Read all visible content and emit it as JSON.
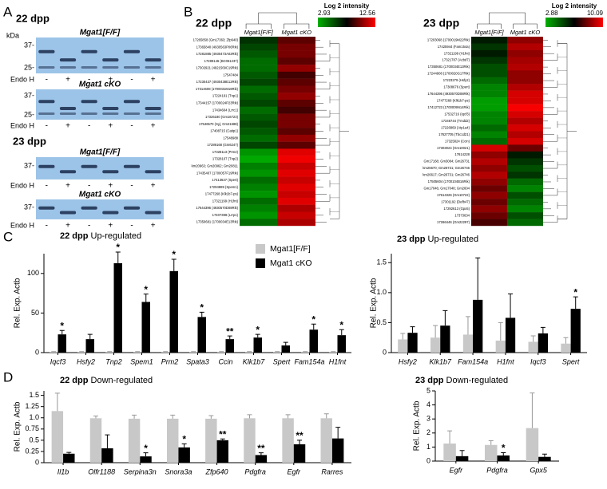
{
  "panels": {
    "a": "A",
    "b": "B",
    "c": "C",
    "d": "D"
  },
  "blots": {
    "unit": "kDa",
    "sections": [
      {
        "label": "22 dpp",
        "gels": [
          {
            "title": "Mgat1[F/F]",
            "markers": [
              "37-",
              "25-"
            ],
            "treatment": "Endo H",
            "signs": [
              "-",
              "+",
              "-",
              "+",
              "-",
              "+"
            ]
          },
          {
            "title": "Mgat1 cKO",
            "markers": [
              "37-",
              "25-"
            ],
            "treatment": "Endo H",
            "signs": [
              "-",
              "+",
              "-",
              "+",
              "-",
              "+"
            ]
          }
        ]
      },
      {
        "label": "23 dpp",
        "gels": [
          {
            "title": "Mgat1[F/F]",
            "markers": [
              "37-"
            ],
            "treatment": "Endo H",
            "signs": [
              "-",
              "+",
              "-",
              "+",
              "-",
              "+"
            ]
          },
          {
            "title": "Mgat1 cKO",
            "markers": [
              "37-"
            ],
            "treatment": "Endo H",
            "signs": [
              "-",
              "+",
              "-",
              "+",
              "-",
              "+"
            ]
          }
        ]
      }
    ]
  },
  "heatmaps": [
    {
      "title": "22 dpp",
      "scale_title": "Log 2 intensity",
      "scale_min": 2.93,
      "scale_max": 12.56,
      "groups": [
        "Mgat1[F/F]",
        "Mgat1 cKO"
      ],
      "rows": [
        {
          "label": "17265858 (Gm17363; Zfp640)",
          "values": [
            6.5,
            9.5
          ]
        },
        {
          "label": "17365840 (4930563P06Rik)",
          "values": [
            6,
            10
          ]
        },
        {
          "label": "17281885 (4930473A02Rik)",
          "values": [
            5.5,
            10
          ]
        },
        {
          "label": "17289146 (BC061237)",
          "values": [
            5,
            9.5
          ]
        },
        {
          "label": "17302921 (4921509C19Rik)",
          "values": [
            5,
            10.5
          ]
        },
        {
          "label": "17547484",
          "values": [
            5.5,
            9
          ]
        },
        {
          "label": "17230437 (4930438E12Rik)",
          "values": [
            6,
            9.5
          ]
        },
        {
          "label": "17314608 (1700031M16Rik)",
          "values": [
            5,
            10
          ]
        },
        {
          "label": "17224191 (Tnp1)",
          "values": [
            5.5,
            10.5
          ]
        },
        {
          "label": "17344157 (1700024P23Rik)",
          "values": [
            6,
            9.5
          ]
        },
        {
          "label": "17434604 (Lrrc1)",
          "values": [
            5,
            9
          ]
        },
        {
          "label": "17326180 (Gm16723)",
          "values": [
            5.5,
            10
          ]
        },
        {
          "label": "17546570 (Syj; Gm21688)",
          "values": [
            6,
            10
          ]
        },
        {
          "label": "17408715 (Catip1)",
          "values": [
            5.5,
            9.5
          ]
        },
        {
          "label": "17548988",
          "values": [
            5,
            10.5
          ]
        },
        {
          "label": "17289168 (Gm6247)",
          "values": [
            6,
            9.5
          ]
        },
        {
          "label": "17328113 (Prm2)",
          "values": [
            4,
            12
          ]
        },
        {
          "label": "17328107 (Tnp2)",
          "values": [
            3.5,
            12.3
          ]
        },
        {
          "label": "km20963; Gm20962; Gm20811",
          "values": [
            4.5,
            11.5
          ]
        },
        {
          "label": "17435407 (1700057F19Rik)",
          "values": [
            4,
            12
          ]
        },
        {
          "label": "17413637 (Spert)",
          "values": [
            5,
            11.5
          ]
        },
        {
          "label": "17294989 (Spem1)",
          "values": [
            4.5,
            12
          ]
        },
        {
          "label": "17477268 (Klk1b7-ps)",
          "values": [
            4,
            11.5
          ]
        },
        {
          "label": "17321199 (H1fnt)",
          "values": [
            5,
            12
          ]
        },
        {
          "label": "17644396 (4930570D08Rik)",
          "values": [
            4.5,
            11
          ]
        },
        {
          "label": "17407398 (Lrrp1)",
          "values": [
            4,
            11.5
          ]
        },
        {
          "label": "17350681 (1700034E13Rik)",
          "values": [
            5,
            11
          ]
        }
      ]
    },
    {
      "title": "23 dpp",
      "scale_title": "Log 2 intensity",
      "scale_min": 2.88,
      "scale_max": 10.09,
      "groups": [
        "Mgat1[F/F]",
        "Mgat1 cKO"
      ],
      "rows": [
        {
          "label": "17203068 (1700019M22Rik)",
          "values": [
            6,
            8.5
          ]
        },
        {
          "label": "17425944 (Fam154a)",
          "values": [
            5.5,
            9
          ]
        },
        {
          "label": "17321199 (H1fnt)",
          "values": [
            6,
            8.5
          ]
        },
        {
          "label": "17321787 (Acbd7)",
          "values": [
            5.5,
            8.8
          ]
        },
        {
          "label": "17350681 (1700034E13Rik)",
          "values": [
            5,
            9
          ]
        },
        {
          "label": "17244908 (1700020G17Rik)",
          "values": [
            5,
            8.5
          ]
        },
        {
          "label": "17223279 (Hsfy2)",
          "values": [
            4.5,
            8.5
          ]
        },
        {
          "label": "17308676 (Spert)",
          "values": [
            4,
            9
          ]
        },
        {
          "label": "17644396 (4930570D08Rik)",
          "values": [
            4,
            9.5
          ]
        },
        {
          "label": "17477268 (Klk1b7-ps)",
          "values": [
            3.5,
            9.5
          ]
        },
        {
          "label": "17412723 (1700009N14Rik)",
          "values": [
            3.5,
            10
          ]
        },
        {
          "label": "17532716 (Iqcf3)",
          "values": [
            4,
            9.5
          ]
        },
        {
          "label": "17346744 (Tmdd2)",
          "values": [
            4,
            9
          ]
        },
        {
          "label": "17226869 (Atp1a4)",
          "values": [
            4.5,
            9.5
          ]
        },
        {
          "label": "17627705 (Tbc1d21)",
          "values": [
            4,
            9
          ]
        },
        {
          "label": "17325824 (Ccin)",
          "values": [
            4.5,
            9.5
          ]
        },
        {
          "label": "17303024 (Gm10021)",
          "values": [
            9.5,
            8
          ]
        },
        {
          "label": "17614228",
          "values": [
            8.5,
            6
          ]
        },
        {
          "label": "Gm17168; Gm3084; Gm26731",
          "values": [
            9,
            5.5
          ]
        },
        {
          "label": "km26670; Gm26731; Gm26746",
          "values": [
            8.5,
            5
          ]
        },
        {
          "label": "km26617; Gm26731; Gm26746",
          "values": [
            9,
            5.5
          ]
        },
        {
          "label": "17505604 (1700104B16Rik)",
          "values": [
            8.5,
            4.5
          ]
        },
        {
          "label": "Gm17046; Gm17048; Gm2604",
          "values": [
            8,
            4
          ]
        },
        {
          "label": "17614326 (Gm10722)",
          "values": [
            8.5,
            5
          ]
        },
        {
          "label": "17301192 (Defb47)",
          "values": [
            8,
            4.5
          ]
        },
        {
          "label": "17292613 (Gpx5)",
          "values": [
            8.5,
            4
          ]
        },
        {
          "label": "17373634",
          "values": [
            8,
            5
          ]
        },
        {
          "label": "17266446 (Gm22297)",
          "values": [
            7.5,
            4.5
          ]
        }
      ]
    }
  ],
  "chart_data": [
    {
      "type": "bar",
      "title": "22 dpp",
      "subtitle": "Up-regulated",
      "y_label": "Rel. Exp. Actb",
      "legend": "top-right",
      "categories": [
        "Iqcf3",
        "Hsfy2",
        "Tnp2",
        "Spem1",
        "Prm2",
        "Spata3",
        "Ccin",
        "Klk1b7",
        "Spert",
        "Fam154a",
        "H1fnt"
      ],
      "series": [
        {
          "name": "Mgat1[F/F]",
          "color": "#c8c8c8",
          "values": [
            1,
            1,
            1,
            1,
            1,
            1,
            1,
            1,
            1,
            1,
            1
          ],
          "errors": [
            0.3,
            0.3,
            0.3,
            0.3,
            0.3,
            0.3,
            0.3,
            0.3,
            0.3,
            0.3,
            0.3
          ]
        },
        {
          "name": "Mgat1 cKO",
          "color": "#000000",
          "values": [
            23,
            17,
            113,
            64,
            103,
            45,
            17,
            19,
            9,
            29,
            22
          ],
          "errors": [
            5,
            6,
            14,
            10,
            15,
            6,
            4,
            4,
            4,
            7,
            7
          ],
          "stars": [
            "*",
            null,
            "*",
            "*",
            "*",
            "*",
            "**",
            "*",
            null,
            "*",
            "*"
          ]
        }
      ],
      "ylim": [
        0,
        125
      ],
      "yticks": [
        0,
        50,
        100
      ]
    },
    {
      "type": "bar",
      "title": "23 dpp",
      "subtitle": "Up-regulated",
      "y_label": "Rel. Exp. Actb",
      "categories": [
        "Hsfy2",
        "Klk1b7",
        "Fam154a",
        "H1fnt",
        "Iqcf3",
        "Spert"
      ],
      "series": [
        {
          "color": "#c8c8c8",
          "values": [
            0.22,
            0.25,
            0.3,
            0.2,
            0.18,
            0.15
          ],
          "errors": [
            0.1,
            0.2,
            0.3,
            0.3,
            0.1,
            0.1
          ]
        },
        {
          "color": "#000000",
          "values": [
            0.33,
            0.45,
            0.88,
            0.58,
            0.32,
            0.73
          ],
          "errors": [
            0.1,
            0.25,
            0.7,
            0.4,
            0.1,
            0.2
          ],
          "stars": [
            null,
            null,
            null,
            null,
            null,
            "*"
          ]
        }
      ],
      "ylim": [
        0,
        1.65
      ],
      "yticks": [
        0,
        0.5,
        {
          "value": 1,
          "label": "1.0"
        },
        1.5
      ]
    },
    {
      "type": "bar",
      "title": "22 dpp",
      "subtitle": "Down-regulated",
      "y_label": "Rel. Exp. Actb",
      "categories": [
        "Il1b",
        "Olfr1188",
        "Serpina3n",
        "Snora3a",
        "Zfp640",
        "Pdgfra",
        "Egfr",
        "Rarres"
      ],
      "series": [
        {
          "color": "#c8c8c8",
          "values": [
            1.15,
            0.99,
            0.98,
            0.98,
            0.98,
            0.99,
            0.99,
            0.99
          ],
          "errors": [
            0.4,
            0.05,
            0.08,
            0.08,
            0.07,
            0.08,
            0.08,
            0.1
          ]
        },
        {
          "color": "#000000",
          "values": [
            0.2,
            0.32,
            0.14,
            0.34,
            0.5,
            0.17,
            0.41,
            0.54
          ],
          "errors": [
            0.03,
            0.3,
            0.08,
            0.08,
            0.03,
            0.05,
            0.09,
            0.25
          ],
          "stars": [
            null,
            null,
            "*",
            "*",
            "**",
            "**",
            "**",
            null
          ]
        }
      ],
      "ylim": [
        0,
        1.6
      ],
      "yticks": [
        0,
        0.25,
        0.5,
        0.75,
        {
          "value": 1,
          "label": "1.0"
        },
        1.25,
        1.5
      ]
    },
    {
      "type": "bar",
      "title": "23 dpp",
      "subtitle": "Down-regulated",
      "y_label": "Rel. Exp. Actb",
      "categories": [
        "Egfr",
        "Pdgfra",
        "Gpx5"
      ],
      "series": [
        {
          "color": "#c8c8c8",
          "values": [
            1.25,
            1.15,
            2.35
          ],
          "errors": [
            0.9,
            0.3,
            2.5
          ]
        },
        {
          "color": "#000000",
          "values": [
            0.35,
            0.4,
            0.3
          ],
          "errors": [
            0.4,
            0.2,
            0.2
          ],
          "stars": [
            null,
            "*",
            null
          ]
        }
      ],
      "ylim": [
        0,
        5
      ],
      "yticks": [
        0,
        1,
        2,
        3,
        4,
        5
      ]
    }
  ]
}
